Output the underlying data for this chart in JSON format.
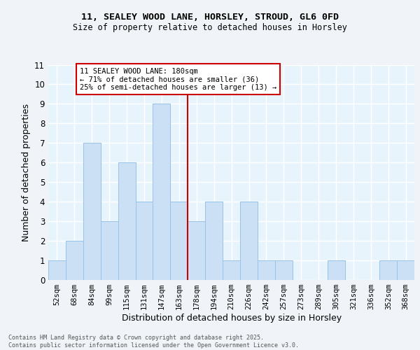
{
  "title1": "11, SEALEY WOOD LANE, HORSLEY, STROUD, GL6 0FD",
  "title2": "Size of property relative to detached houses in Horsley",
  "xlabel": "Distribution of detached houses by size in Horsley",
  "ylabel": "Number of detached properties",
  "bar_color": "#cce0f5",
  "bar_edge_color": "#99c4e8",
  "categories": [
    "52sqm",
    "68sqm",
    "84sqm",
    "99sqm",
    "115sqm",
    "131sqm",
    "147sqm",
    "163sqm",
    "178sqm",
    "194sqm",
    "210sqm",
    "226sqm",
    "242sqm",
    "257sqm",
    "273sqm",
    "289sqm",
    "305sqm",
    "321sqm",
    "336sqm",
    "352sqm",
    "368sqm"
  ],
  "values": [
    1,
    2,
    7,
    3,
    6,
    4,
    9,
    4,
    3,
    4,
    1,
    4,
    1,
    1,
    0,
    0,
    1,
    0,
    0,
    1,
    1
  ],
  "vline_color": "#cc0000",
  "vline_pos": 7.5,
  "annotation_text": "11 SEALEY WOOD LANE: 180sqm\n← 71% of detached houses are smaller (36)\n25% of semi-detached houses are larger (13) →",
  "annotation_box_color": "#ffffff",
  "annotation_box_edge": "#cc0000",
  "ylim": [
    0,
    11
  ],
  "yticks": [
    0,
    1,
    2,
    3,
    4,
    5,
    6,
    7,
    8,
    9,
    10,
    11
  ],
  "background_color": "#e8f4fc",
  "grid_color": "#ffffff",
  "fig_facecolor": "#f0f4f8",
  "footer": "Contains HM Land Registry data © Crown copyright and database right 2025.\nContains public sector information licensed under the Open Government Licence v3.0."
}
